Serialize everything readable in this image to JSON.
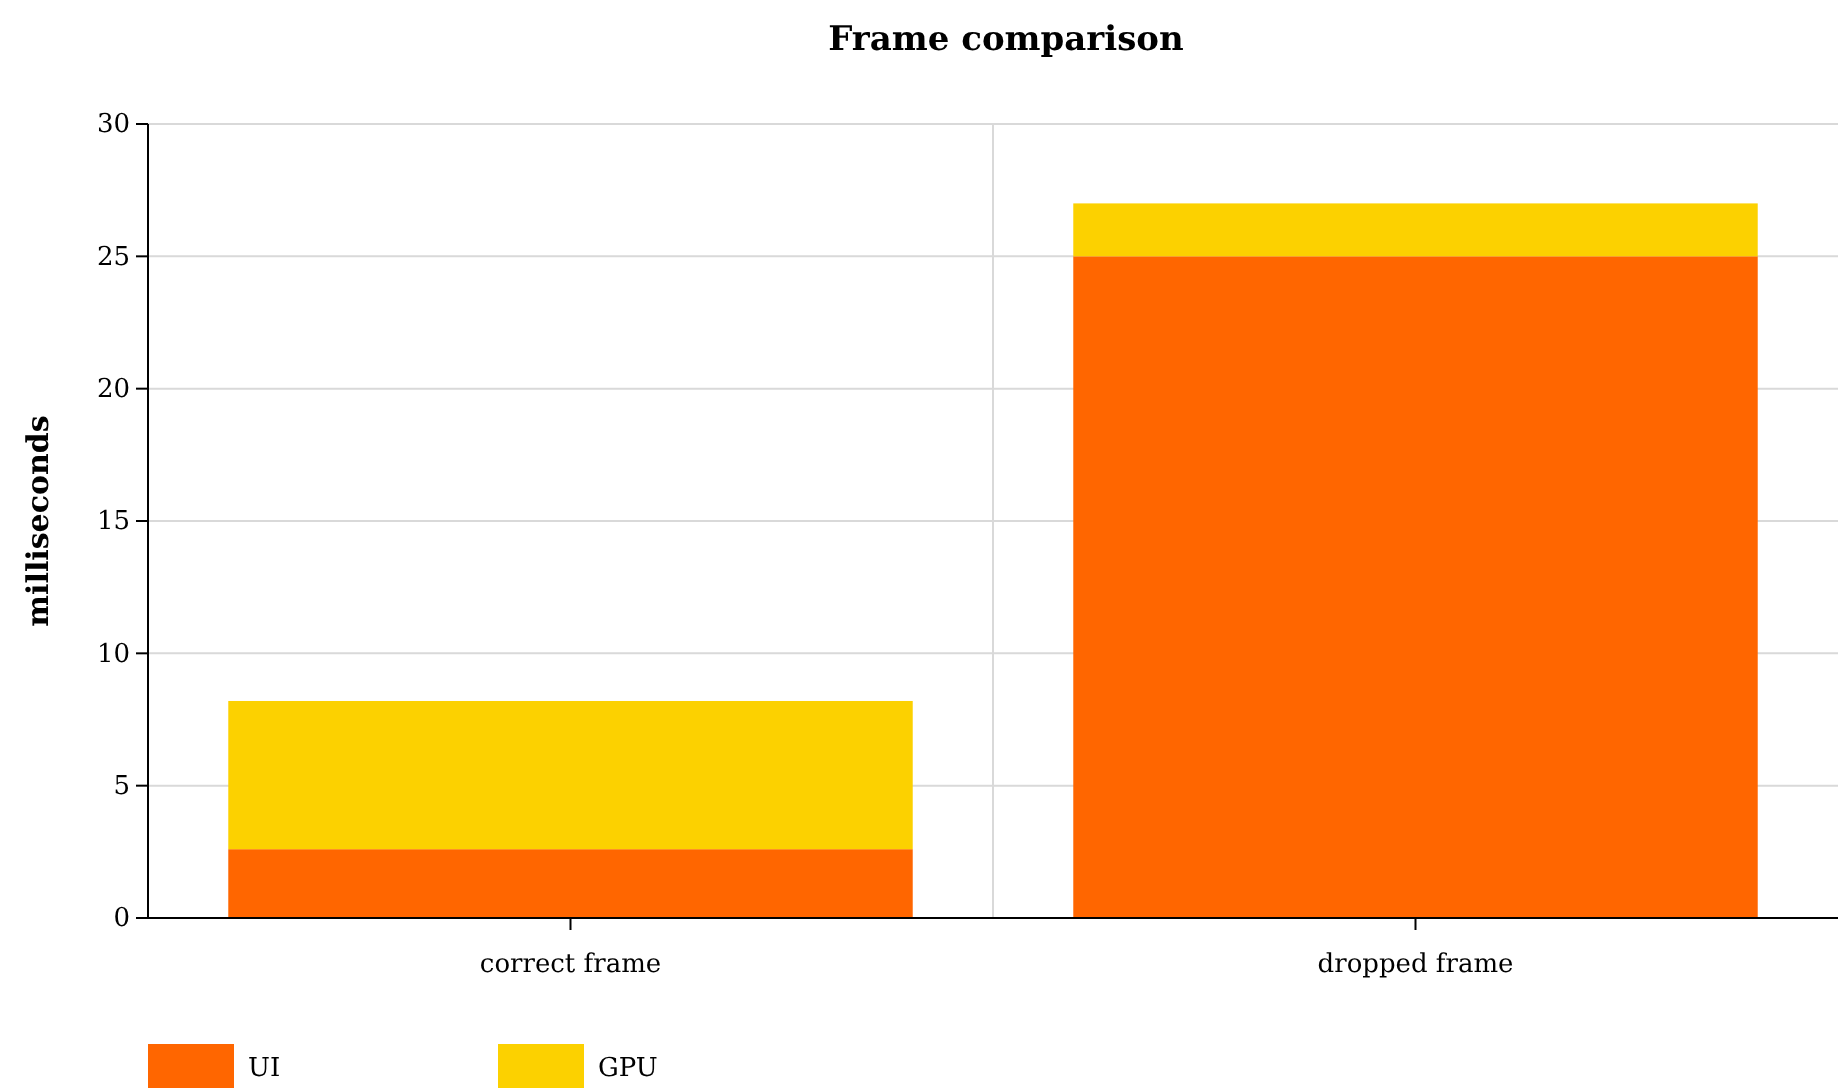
{
  "chart_data": {
    "type": "bar",
    "title": "Frame comparison",
    "ylabel": "milliseconds",
    "categories": [
      "correct frame",
      "dropped frame"
    ],
    "series": [
      {
        "name": "UI",
        "color": "#ff6600",
        "values": [
          2.6,
          25
        ]
      },
      {
        "name": "GPU",
        "color": "#fcd100",
        "values": [
          5.6,
          2
        ]
      }
    ],
    "stacked": true,
    "ylim": [
      0,
      30
    ],
    "yticks": [
      0,
      5,
      10,
      15,
      20,
      25,
      30
    ],
    "grid": true,
    "legend": "bottom left"
  }
}
